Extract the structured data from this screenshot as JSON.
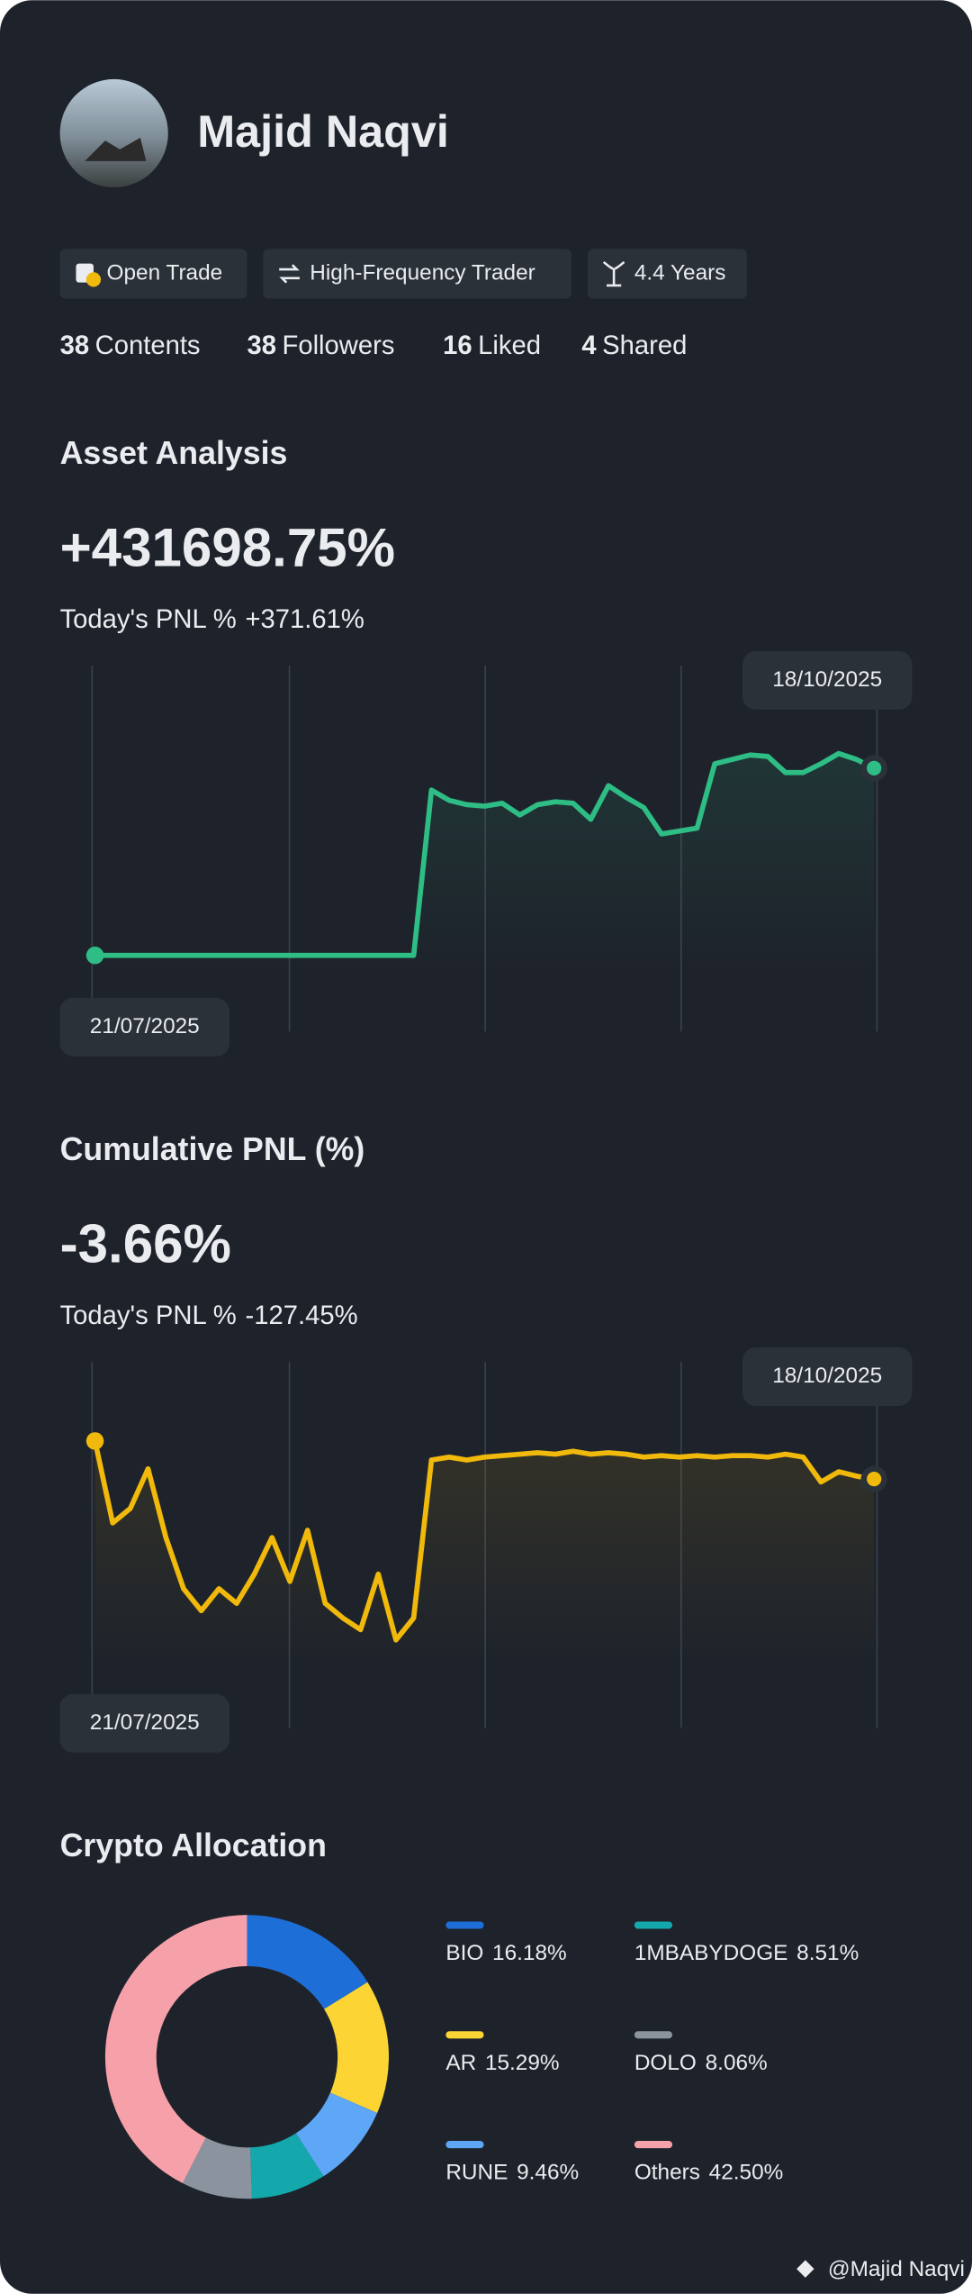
{
  "profile": {
    "name": "Majid Naqvi",
    "badges": [
      "Open Trade",
      "High-Frequency Trader",
      "4.4 Years"
    ],
    "stats": [
      {
        "value": 38,
        "label": "Contents"
      },
      {
        "value": 38,
        "label": "Followers"
      },
      {
        "value": 16,
        "label": "Liked"
      },
      {
        "value": 4,
        "label": "Shared"
      }
    ]
  },
  "chart_data": [
    {
      "type": "line",
      "title": "Asset Analysis",
      "headline": "+431698.75%",
      "today_label": "Today's PNL %",
      "today_value": "+371.61%",
      "start_label": "21/07/2025",
      "end_label": "18/10/2025",
      "color": "#2ebd85",
      "ylim": [
        0,
        100
      ],
      "values": [
        20.8,
        20.8,
        20.8,
        20.8,
        20.8,
        20.8,
        20.8,
        20.8,
        20.8,
        20.8,
        20.8,
        20.8,
        20.8,
        20.8,
        20.8,
        20.8,
        20.8,
        20.8,
        20.8,
        66,
        63.2,
        62,
        61.6,
        62.4,
        59.2,
        62,
        62.8,
        62.4,
        58,
        67.2,
        64,
        61.2,
        54,
        54.8,
        55.6,
        73.2,
        74.4,
        75.6,
        75.2,
        70.8,
        70.8,
        73.2,
        76,
        74.4,
        72
      ]
    },
    {
      "type": "line",
      "title": "Cumulative PNL (%)",
      "headline": "-3.66%",
      "today_label": "Today's PNL %",
      "today_value": "-127.45%",
      "start_label": "21/07/2025",
      "end_label": "18/10/2025",
      "color": "#f0b90b",
      "ylim": [
        0,
        100
      ],
      "values": [
        78.4,
        56,
        60,
        70.8,
        52,
        38,
        32,
        38,
        34,
        42,
        52,
        40,
        54,
        34,
        30,
        26.8,
        42,
        24,
        30,
        73.2,
        74,
        73.2,
        74,
        74.4,
        74.8,
        75.2,
        74.8,
        75.6,
        74.8,
        75.2,
        74.8,
        74,
        74.4,
        74,
        74.4,
        74,
        74.4,
        74.4,
        74,
        74.8,
        74,
        67.2,
        70,
        68.8,
        68
      ]
    },
    {
      "type": "donut",
      "title": "Crypto Allocation",
      "categories": [
        "BIO",
        "AR",
        "RUNE",
        "1MBABYDOGE",
        "DOLO",
        "Others"
      ],
      "values": [
        16.18,
        15.29,
        9.46,
        8.51,
        8.06,
        42.5
      ],
      "value_labels": [
        "16.18%",
        "15.29%",
        "9.46%",
        "8.51%",
        "8.06%",
        "42.50%"
      ],
      "colors": [
        "#1e6ed8",
        "#fcd535",
        "#5ea6f6",
        "#14a8ad",
        "#8a939e",
        "#f6a1a9"
      ]
    }
  ],
  "footer": "@Majid Naqvi"
}
